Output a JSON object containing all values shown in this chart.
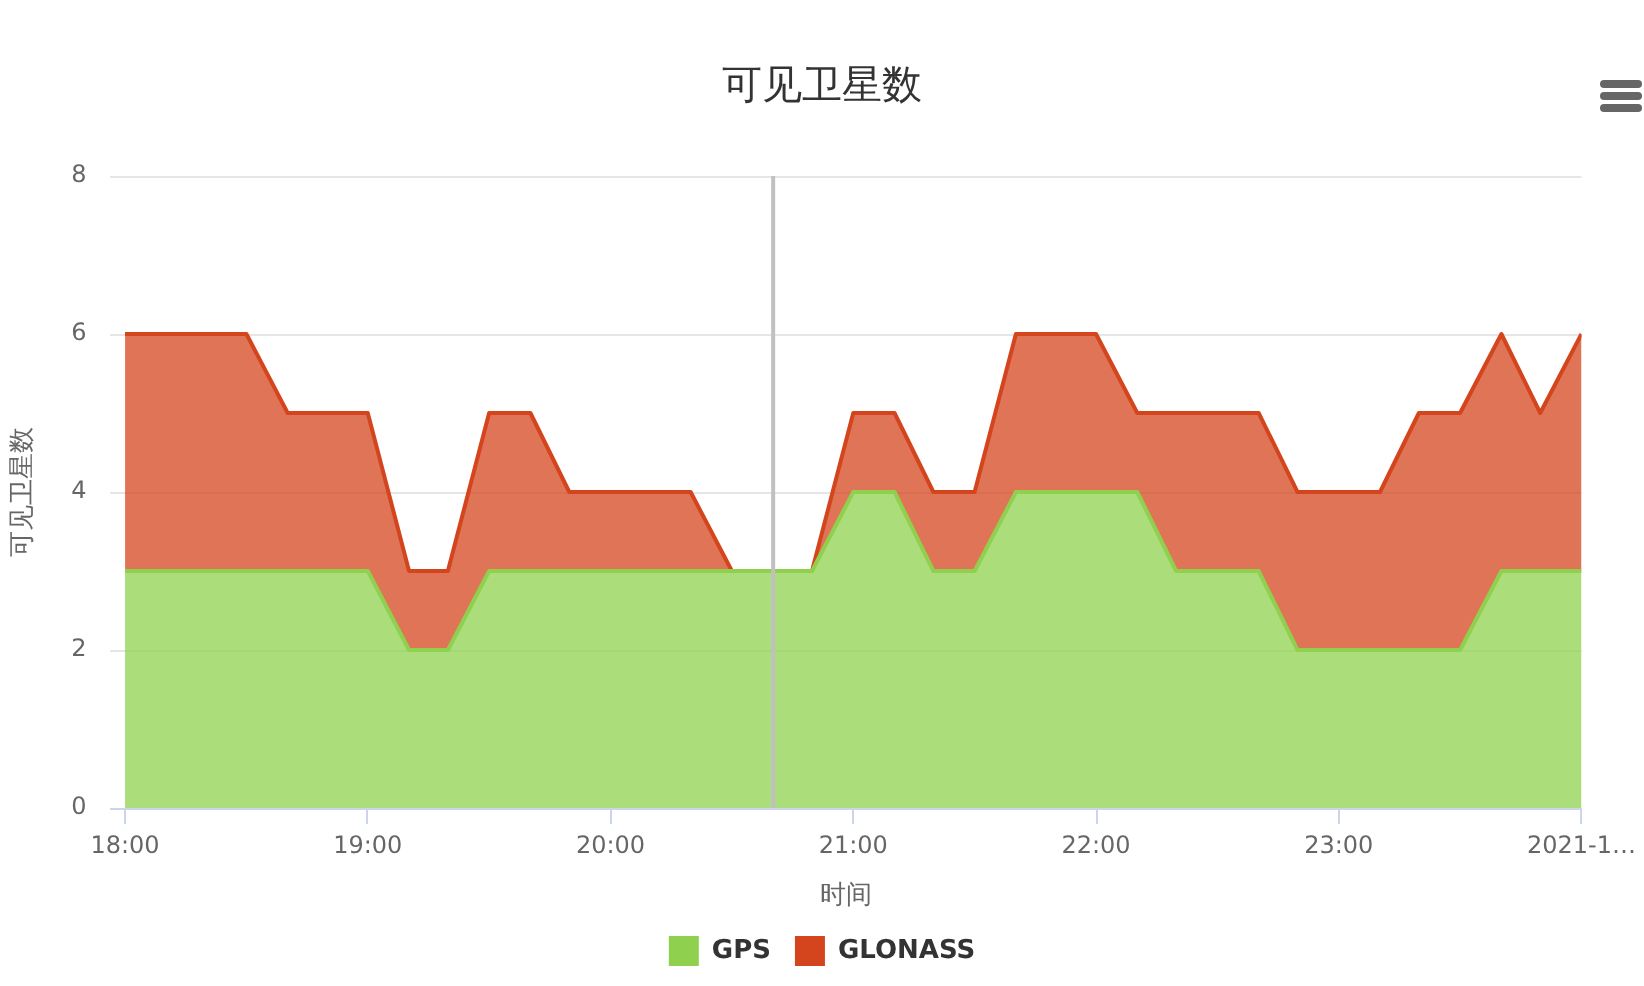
{
  "chart_data": {
    "type": "area",
    "title": "可见卫星数",
    "xlabel": "时间",
    "ylabel": "可见卫星数",
    "x": [
      18,
      18.17,
      18.33,
      18.5,
      18.67,
      18.83,
      19,
      19.17,
      19.33,
      19.5,
      19.67,
      19.83,
      20,
      20.17,
      20.33,
      20.5,
      20.67,
      20.83,
      21,
      21.17,
      21.33,
      21.5,
      21.67,
      21.83,
      22,
      22.17,
      22.33,
      22.5,
      22.67,
      22.83,
      23,
      23.17,
      23.33,
      23.5,
      23.67,
      23.83,
      24
    ],
    "series": [
      {
        "name": "GPS",
        "color": "#8fd14f",
        "values": [
          3,
          3,
          3,
          3,
          3,
          3,
          3,
          2,
          2,
          3,
          3,
          3,
          3,
          3,
          3,
          3,
          3,
          3,
          4,
          4,
          3,
          3,
          4,
          4,
          4,
          4,
          3,
          3,
          3,
          2,
          2,
          2,
          2,
          2,
          3,
          3,
          3
        ]
      },
      {
        "name": "GLONASS",
        "color": "#d4451d",
        "values": [
          3,
          3,
          3,
          3,
          2,
          2,
          2,
          1,
          1,
          2,
          2,
          1,
          1,
          1,
          1,
          0,
          0,
          0,
          1,
          1,
          1,
          1,
          2,
          2,
          2,
          1,
          2,
          2,
          2,
          2,
          2,
          2,
          3,
          3,
          3,
          2,
          3
        ]
      }
    ],
    "stacked": true,
    "xlim": [
      17.94,
      24
    ],
    "xticks": [
      {
        "value": 18,
        "label": "18:00"
      },
      {
        "value": 19,
        "label": "19:00"
      },
      {
        "value": 20,
        "label": "20:00"
      },
      {
        "value": 21,
        "label": "21:00"
      },
      {
        "value": 22,
        "label": "22:00"
      },
      {
        "value": 23,
        "label": "23:00"
      },
      {
        "value": 24,
        "label": "2021-1…"
      }
    ],
    "ylim": [
      0,
      8
    ],
    "yticks": [
      0,
      2,
      4,
      6,
      8
    ],
    "grid": "y",
    "legend": "bottom",
    "marker": "none",
    "ref_lines": [
      {
        "axis": "x",
        "value": 20.67,
        "color": "#c0c0c0"
      }
    ]
  }
}
